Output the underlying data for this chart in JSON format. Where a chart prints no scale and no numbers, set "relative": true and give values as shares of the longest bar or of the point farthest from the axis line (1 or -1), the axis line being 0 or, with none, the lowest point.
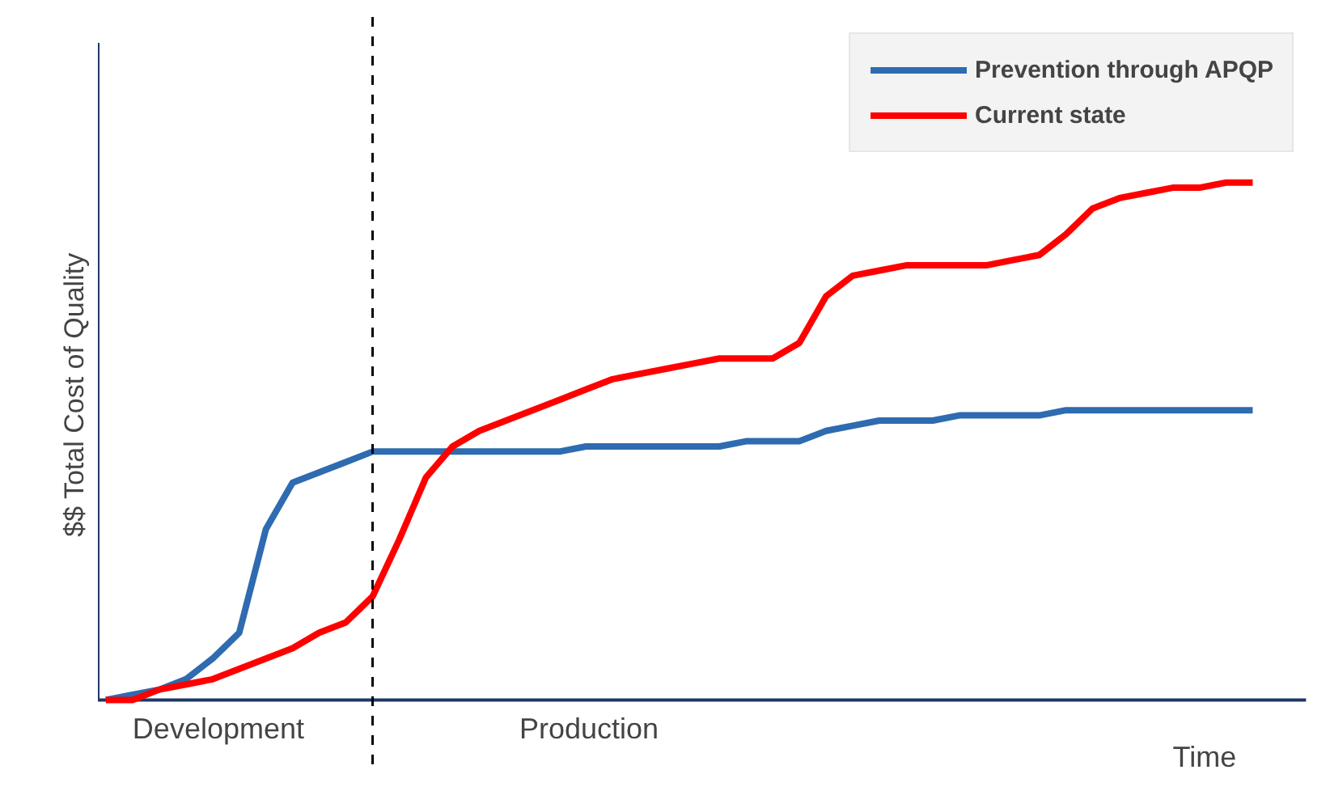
{
  "chart_data": {
    "type": "line",
    "relative": true,
    "xlabel": "Time",
    "ylabel": "$$ Total Cost of Quality",
    "categories": [
      null,
      null,
      null,
      null,
      null,
      null,
      null,
      null,
      null,
      null,
      null,
      null,
      null,
      null,
      null,
      null,
      null,
      null,
      null,
      null,
      null,
      null,
      null,
      null,
      null,
      null,
      null,
      null,
      null,
      null,
      null,
      null,
      null,
      null,
      null,
      null,
      null,
      null,
      null,
      null,
      null,
      null,
      null,
      null
    ],
    "series": [
      {
        "name": "Prevention through APQP",
        "color": "#2e6bb0",
        "values": [
          0,
          0.01,
          0.02,
          0.04,
          0.08,
          0.13,
          0.33,
          0.42,
          0.44,
          0.46,
          0.48,
          0.48,
          0.48,
          0.48,
          0.48,
          0.48,
          0.48,
          0.48,
          0.49,
          0.49,
          0.49,
          0.49,
          0.49,
          0.49,
          0.5,
          0.5,
          0.5,
          0.52,
          0.53,
          0.54,
          0.54,
          0.54,
          0.55,
          0.55,
          0.55,
          0.55,
          0.56,
          0.56,
          0.56,
          0.56,
          0.56,
          0.56,
          0.56,
          0.56
        ]
      },
      {
        "name": "Current state",
        "color": "#ff0000",
        "values": [
          0,
          0.0,
          0.02,
          0.03,
          0.04,
          0.06,
          0.08,
          0.1,
          0.13,
          0.15,
          0.2,
          0.31,
          0.43,
          0.49,
          0.52,
          0.54,
          0.56,
          0.58,
          0.6,
          0.62,
          0.63,
          0.64,
          0.65,
          0.66,
          0.66,
          0.66,
          0.69,
          0.78,
          0.82,
          0.83,
          0.84,
          0.84,
          0.84,
          0.84,
          0.85,
          0.86,
          0.9,
          0.95,
          0.97,
          0.98,
          0.99,
          0.99,
          1.0,
          1.0
        ]
      }
    ],
    "annotations": [
      "Development",
      "Production"
    ],
    "legend": "top right",
    "grid": false,
    "line_style": "solid",
    "marker": "none"
  }
}
